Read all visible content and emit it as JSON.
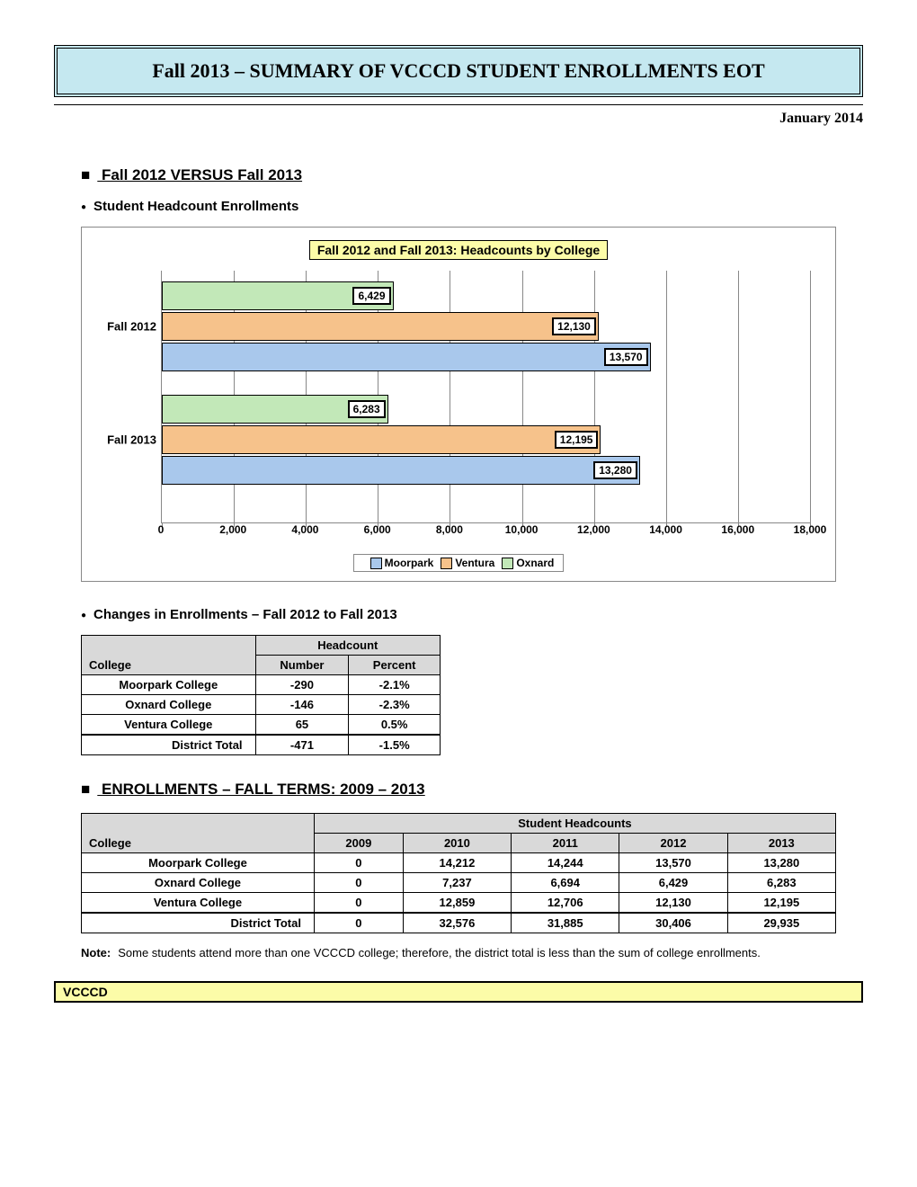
{
  "header": {
    "title": "Fall 2013 – SUMMARY OF VCCCD STUDENT ENROLLMENTS EOT",
    "date": "January 2014"
  },
  "section1": {
    "heading": "Fall 2012 VERSUS Fall 2013",
    "sub1": "Student Headcount Enrollments",
    "sub2": "Changes in Enrollments – Fall 2012 to Fall 2013"
  },
  "chart": {
    "title": "Fall 2012 and Fall 2013: Headcounts by College",
    "xmax": 18000,
    "xtick_step": 2000,
    "xticks": [
      "0",
      "2,000",
      "4,000",
      "6,000",
      "8,000",
      "10,000",
      "12,000",
      "14,000",
      "16,000",
      "18,000"
    ],
    "categories": [
      "Fall 2012",
      "Fall 2013"
    ],
    "series": [
      {
        "name": "Moorpark",
        "color": "#a9c8ec"
      },
      {
        "name": "Ventura",
        "color": "#f6c28b"
      },
      {
        "name": "Oxnard",
        "color": "#c2e8b8"
      }
    ],
    "groups": [
      {
        "label": "Fall 2012",
        "bars": [
          {
            "series": "Oxnard",
            "value": 6429,
            "label": "6,429",
            "color": "#c2e8b8"
          },
          {
            "series": "Ventura",
            "value": 12130,
            "label": "12,130",
            "color": "#f6c28b"
          },
          {
            "series": "Moorpark",
            "value": 13570,
            "label": "13,570",
            "color": "#a9c8ec"
          }
        ]
      },
      {
        "label": "Fall 2013",
        "bars": [
          {
            "series": "Oxnard",
            "value": 6283,
            "label": "6,283",
            "color": "#c2e8b8"
          },
          {
            "series": "Ventura",
            "value": 12195,
            "label": "12,195",
            "color": "#f6c28b"
          },
          {
            "series": "Moorpark",
            "value": 13280,
            "label": "13,280",
            "color": "#a9c8ec"
          }
        ]
      }
    ]
  },
  "table1": {
    "header_group": "Headcount",
    "col_college": "College",
    "col_number": "Number",
    "col_percent": "Percent",
    "rows": [
      {
        "college": "Moorpark College",
        "number": "-290",
        "percent": "-2.1%"
      },
      {
        "college": "Oxnard College",
        "number": "-146",
        "percent": "-2.3%"
      },
      {
        "college": "Ventura College",
        "number": "65",
        "percent": "0.5%"
      }
    ],
    "total": {
      "college": "District Total",
      "number": "-471",
      "percent": "-1.5%"
    }
  },
  "section2": {
    "heading": "ENROLLMENTS – FALL TERMS: 2009 – 2013"
  },
  "table2": {
    "header_group": "Student Headcounts",
    "col_college": "College",
    "years": [
      "2009",
      "2010",
      "2011",
      "2012",
      "2013"
    ],
    "rows": [
      {
        "college": "Moorpark College",
        "vals": [
          "0",
          "14,212",
          "14,244",
          "13,570",
          "13,280"
        ]
      },
      {
        "college": "Oxnard College",
        "vals": [
          "0",
          "7,237",
          "6,694",
          "6,429",
          "6,283"
        ]
      },
      {
        "college": "Ventura College",
        "vals": [
          "0",
          "12,859",
          "12,706",
          "12,130",
          "12,195"
        ]
      }
    ],
    "total": {
      "college": "District Total",
      "vals": [
        "0",
        "32,576",
        "31,885",
        "30,406",
        "29,935"
      ]
    }
  },
  "note": {
    "label": "Note:",
    "text": "Some students attend more than one VCCCD college; therefore, the district total is less than the sum of college enrollments."
  },
  "footer": "VCCCD"
}
